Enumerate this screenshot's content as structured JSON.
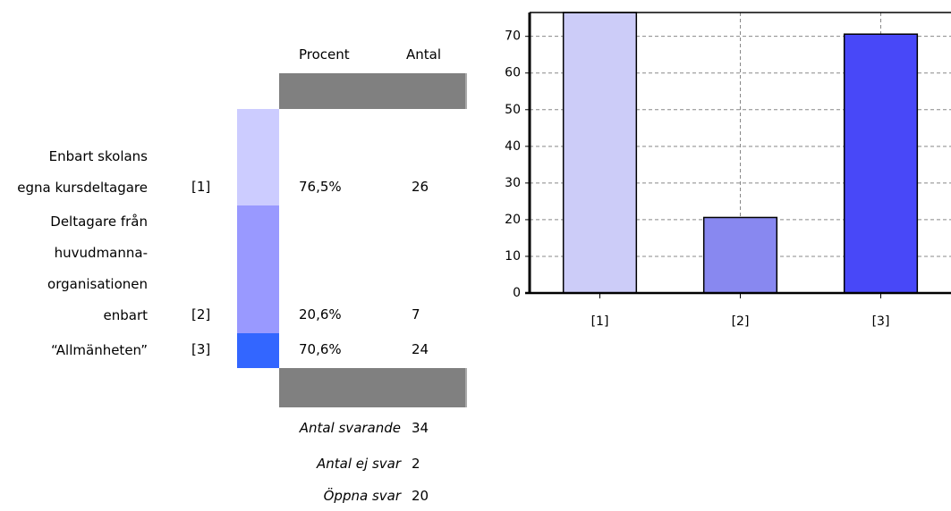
{
  "table": {
    "headers": [
      "Procent",
      "Antal"
    ],
    "rows": [
      {
        "label": "Enbart skolans egna kursdeltagare",
        "code": "[1]",
        "percent": "76,5%",
        "count": "26",
        "color": "#ccccff"
      },
      {
        "label": "Deltagare från huvudmanna-organisationen enbart",
        "code": "[2]",
        "percent": "20,6%",
        "count": "7",
        "color": "#9999ff"
      },
      {
        "label": "“Allmänheten”",
        "code": "[3]",
        "percent": "70,6%",
        "count": "24",
        "color": "#3366ff"
      }
    ],
    "summary": [
      {
        "label": "Antal svarande",
        "value": "34"
      },
      {
        "label": "Antal ej svar",
        "value": "2"
      },
      {
        "label": "Öppna svar",
        "value": "20"
      }
    ]
  },
  "chart_data": {
    "type": "bar",
    "categories": [
      "[1]",
      "[2]",
      "[3]"
    ],
    "values": [
      76.5,
      20.6,
      70.6
    ],
    "colors": [
      "#ccccf8",
      "#8888f0",
      "#4848f8"
    ],
    "ylim": [
      0,
      76.5
    ],
    "yticks": [
      0,
      10,
      20,
      30,
      40,
      50,
      60,
      70
    ],
    "grid": true
  }
}
